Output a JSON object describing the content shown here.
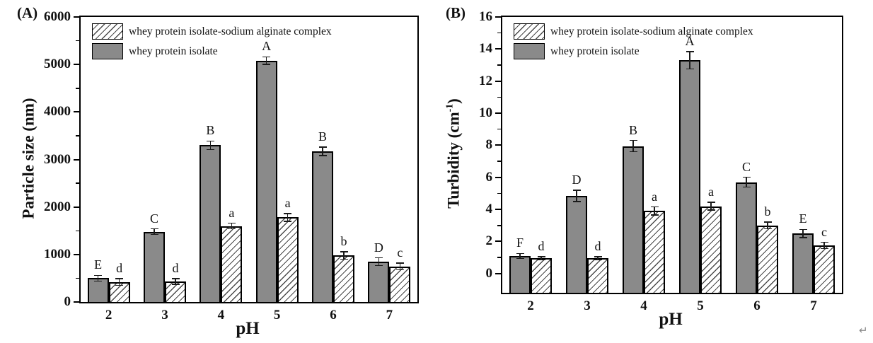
{
  "figure": {
    "panels": [
      {
        "label": "(A)"
      },
      {
        "label": "(B)"
      }
    ],
    "return_mark": "↵",
    "colors": {
      "background": "#ffffff",
      "bar_gray": "#8a8a8a",
      "bar_border": "#000000",
      "hatch_line": "#4a4a4a",
      "axis": "#000000",
      "text": "#111111"
    }
  },
  "chart_data": [
    {
      "type": "bar",
      "panel": "A",
      "title": "",
      "xlabel": "pH",
      "ylabel": "Particle size (nm)",
      "ylabel_display": {
        "prefix": "Particle size (nm)",
        "sup": "",
        "suffix": ""
      },
      "categories": [
        "2",
        "3",
        "4",
        "5",
        "6",
        "7"
      ],
      "ylim": [
        0,
        6000
      ],
      "yticks": [
        0,
        1000,
        2000,
        3000,
        4000,
        5000,
        6000
      ],
      "minor_tick_step": 500,
      "grid": false,
      "legend_position": "top-left-inside",
      "series": [
        {
          "name": "whey protein isolate",
          "style": "solid-gray",
          "values": [
            500,
            1480,
            3300,
            5080,
            3170,
            850
          ],
          "errors": [
            60,
            60,
            90,
            80,
            90,
            80
          ],
          "sig_letters": [
            "E",
            "C",
            "B",
            "A",
            "B",
            "D"
          ]
        },
        {
          "name": "whey protein isolate-sodium alginate complex",
          "style": "hatched",
          "values": [
            420,
            430,
            1600,
            1780,
            980,
            750
          ],
          "errors": [
            70,
            60,
            60,
            80,
            80,
            70
          ],
          "sig_letters": [
            "d",
            "d",
            "a",
            "a",
            "b",
            "c"
          ]
        }
      ]
    },
    {
      "type": "bar",
      "panel": "B",
      "title": "",
      "xlabel": "pH",
      "ylabel": "Turbidity (cm-1)",
      "ylabel_display": {
        "prefix": "Turbidity (cm",
        "sup": "-1",
        "suffix": ")"
      },
      "categories": [
        "2",
        "3",
        "4",
        "5",
        "6",
        "7"
      ],
      "ylim": [
        -1.2,
        16
      ],
      "yticks": [
        0,
        2,
        4,
        6,
        8,
        10,
        12,
        14,
        16
      ],
      "minor_tick_step": 1,
      "grid": false,
      "legend_position": "top-left-inside",
      "series": [
        {
          "name": "whey protein isolate",
          "style": "solid-gray",
          "values": [
            1.1,
            4.85,
            7.95,
            13.3,
            5.7,
            2.5
          ],
          "errors": [
            0.15,
            0.35,
            0.35,
            0.55,
            0.3,
            0.25
          ],
          "sig_letters": [
            "F",
            "D",
            "B",
            "A",
            "C",
            "E"
          ]
        },
        {
          "name": "whey protein isolate-sodium alginate complex",
          "style": "hatched",
          "values": [
            0.95,
            0.95,
            3.9,
            4.2,
            3.0,
            1.75
          ],
          "errors": [
            0.1,
            0.1,
            0.25,
            0.25,
            0.2,
            0.2
          ],
          "sig_letters": [
            "d",
            "d",
            "a",
            "a",
            "b",
            "c"
          ]
        }
      ]
    }
  ]
}
